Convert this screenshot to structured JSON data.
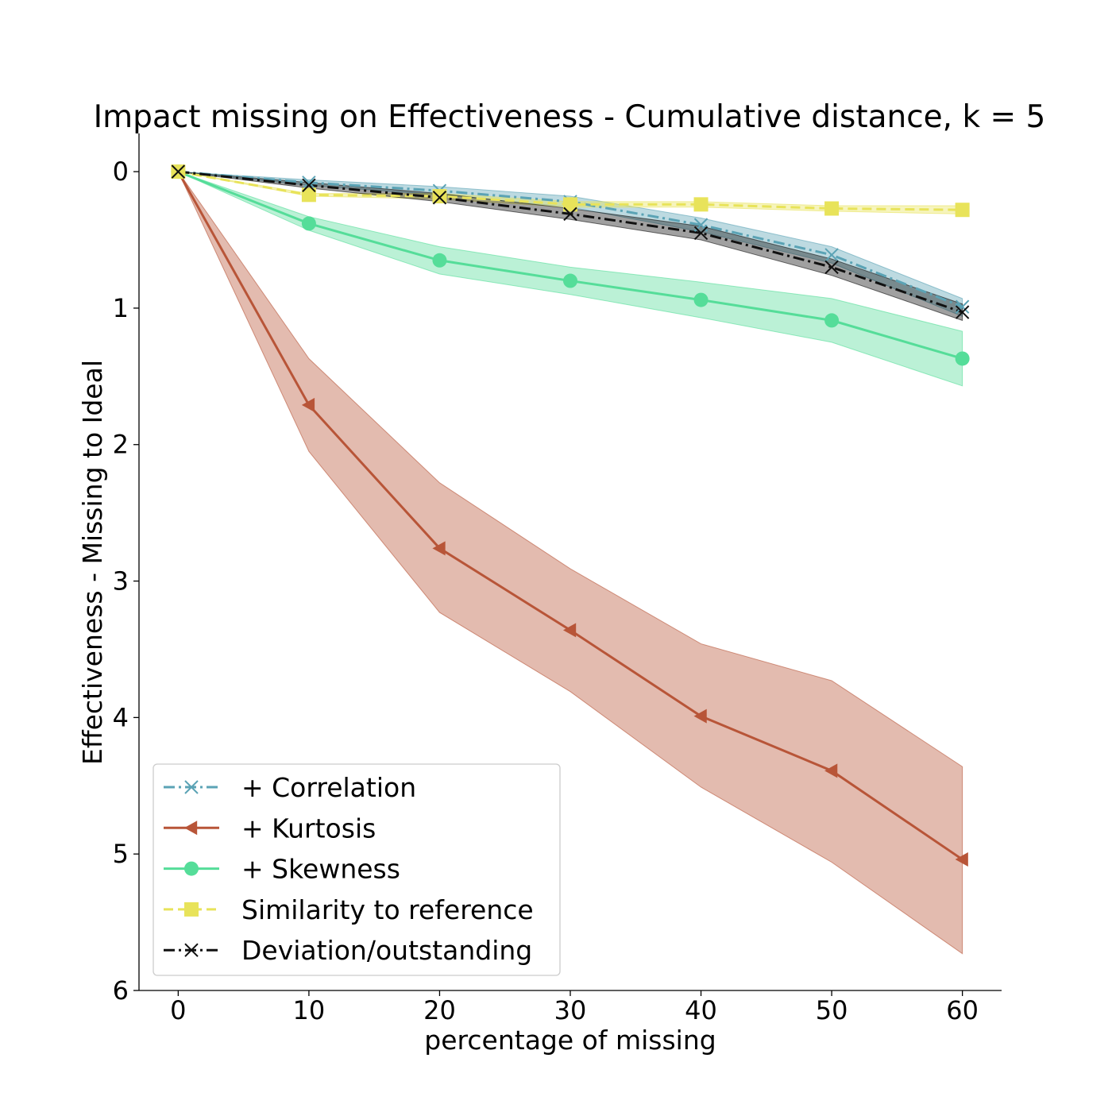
{
  "chart_data": {
    "type": "line",
    "title": "Impact missing on Effectiveness - Cumulative distance, k = 5",
    "xlabel": "percentage of missing",
    "ylabel": "Effectiveness - Missing to Ideal",
    "x": [
      0,
      10,
      20,
      30,
      40,
      50,
      60
    ],
    "xlim": [
      -3,
      63
    ],
    "ylim": [
      6,
      -0.28
    ],
    "y_inverted": true,
    "xticks": [
      "0",
      "10",
      "20",
      "30",
      "40",
      "50",
      "60"
    ],
    "yticks": [
      "0",
      "1",
      "2",
      "3",
      "4",
      "5",
      "6"
    ],
    "grid": false,
    "legend_position": "lower-left",
    "series": [
      {
        "name": "+ Correlation",
        "color": "#5ba3b5",
        "marker": "x",
        "linestyle": "dashdot",
        "values": [
          0,
          0.08,
          0.14,
          0.22,
          0.39,
          0.61,
          0.99
        ],
        "band_lower": [
          0,
          0.06,
          0.11,
          0.18,
          0.34,
          0.55,
          0.93
        ],
        "band_upper": [
          0,
          0.1,
          0.17,
          0.26,
          0.44,
          0.67,
          1.06
        ]
      },
      {
        "name": "+ Kurtosis",
        "color": "#b85538",
        "marker": "triangle-left",
        "linestyle": "solid",
        "values": [
          0,
          1.71,
          2.76,
          3.36,
          3.99,
          4.39,
          5.04
        ],
        "band_lower": [
          0,
          1.37,
          2.28,
          2.91,
          3.46,
          3.73,
          4.36
        ],
        "band_upper": [
          0,
          2.05,
          3.23,
          3.81,
          4.51,
          5.06,
          5.73
        ]
      },
      {
        "name": "+ Skewness",
        "color": "#55dd99",
        "marker": "circle",
        "linestyle": "solid",
        "values": [
          0,
          0.38,
          0.65,
          0.8,
          0.94,
          1.09,
          1.37
        ],
        "band_lower": [
          0,
          0.33,
          0.55,
          0.7,
          0.81,
          0.93,
          1.17
        ],
        "band_upper": [
          0,
          0.43,
          0.75,
          0.9,
          1.07,
          1.25,
          1.57
        ]
      },
      {
        "name": "Similarity to reference",
        "color": "#e8e35a",
        "marker": "square",
        "linestyle": "dashed",
        "values": [
          0,
          0.17,
          0.18,
          0.24,
          0.24,
          0.27,
          0.28
        ],
        "band_lower": [
          0,
          0.16,
          0.16,
          0.22,
          0.22,
          0.25,
          0.25
        ],
        "band_upper": [
          0,
          0.18,
          0.2,
          0.26,
          0.26,
          0.29,
          0.31
        ]
      },
      {
        "name": "Deviation/outstanding",
        "color": "#111111",
        "marker": "x",
        "linestyle": "dashdot",
        "values": [
          0,
          0.1,
          0.19,
          0.31,
          0.45,
          0.7,
          1.03
        ],
        "band_lower": [
          0,
          0.08,
          0.16,
          0.27,
          0.4,
          0.64,
          0.97
        ],
        "band_upper": [
          0,
          0.12,
          0.22,
          0.35,
          0.5,
          0.76,
          1.09
        ]
      }
    ]
  }
}
